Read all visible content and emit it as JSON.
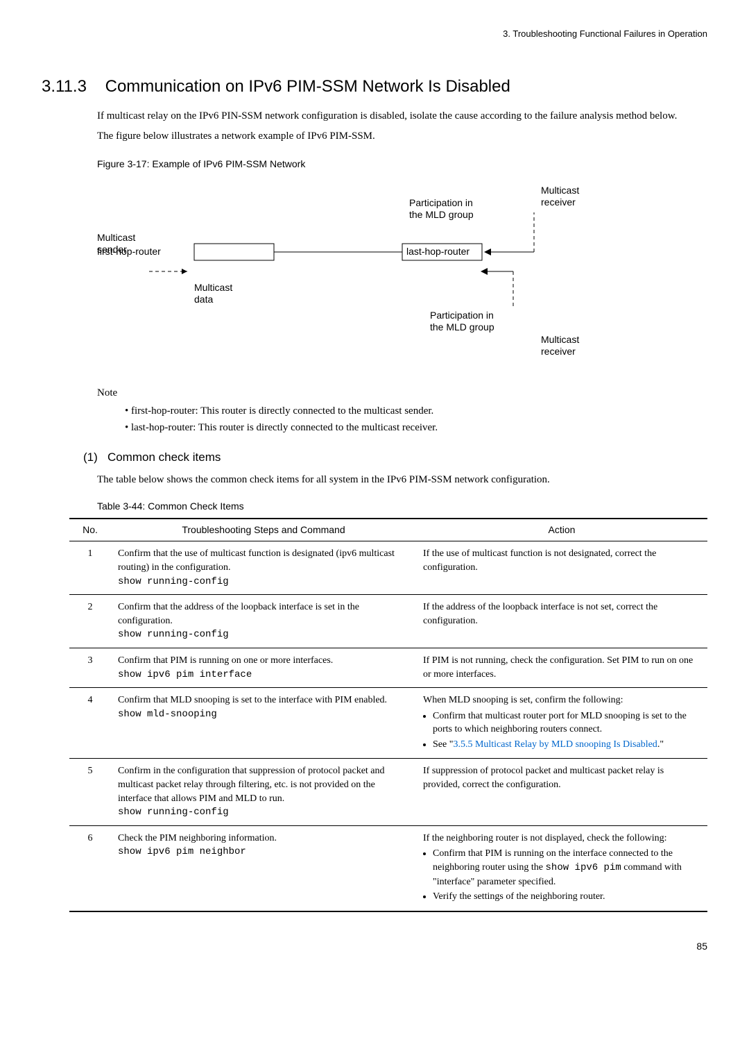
{
  "header": {
    "chapter": "3.",
    "chapter_title": "Troubleshooting Functional Failures in Operation"
  },
  "section": {
    "number": "3.11.3",
    "title": "Communication on IPv6 PIM-SSM Network Is Disabled"
  },
  "intro_para1": "If multicast relay on the IPv6 PIN-SSM network configuration is disabled, isolate the cause according to the failure analysis method below.",
  "intro_para2": "The figure below illustrates a network example of IPv6 PIM-SSM.",
  "figure": {
    "caption": "Figure 3-17: Example of IPv6 PIM-SSM Network",
    "labels": {
      "multicast_sender": "Multicast\nsender",
      "first_hop": "first-hop-router",
      "last_hop": "last-hop-router",
      "multicast_data": "Multicast\ndata",
      "participation1": "Participation in\nthe MLD group",
      "participation2": "Participation in\nthe MLD group",
      "multicast_receiver1": "Multicast\nreceiver",
      "multicast_receiver2": "Multicast\nreceiver"
    }
  },
  "note_label": "Note",
  "note_bullets": [
    "first-hop-router: This router is directly connected to the multicast sender.",
    "last-hop-router: This router is directly connected to the multicast receiver."
  ],
  "subsection": {
    "number": "(1)",
    "title": "Common check items"
  },
  "subsection_para": "The table below shows the common check items for all system in the IPv6 PIM-SSM network configuration.",
  "table": {
    "caption": "Table 3-44: Common Check Items",
    "headers": {
      "no": "No.",
      "steps": "Troubleshooting Steps and Command",
      "action": "Action"
    },
    "rows": [
      {
        "no": "1",
        "steps_text": "Confirm that the use of multicast function is designated (ipv6 multicast routing) in the configuration.",
        "steps_cmd": "show running-config",
        "action_text": "If the use of multicast function is not designated, correct the configuration."
      },
      {
        "no": "2",
        "steps_text": "Confirm that the address of the loopback interface is set in the configuration.",
        "steps_cmd": "show running-config",
        "action_text": "If the address of the loopback interface is not set, correct the configuration."
      },
      {
        "no": "3",
        "steps_text": "Confirm that PIM is running on one or more interfaces.",
        "steps_cmd": "show ipv6 pim interface",
        "action_text": "If PIM is not running, check the configuration. Set PIM to run on one or more interfaces."
      },
      {
        "no": "4",
        "steps_text": "Confirm that MLD snooping is set to the interface with PIM enabled.",
        "steps_cmd": "show mld-snooping",
        "action_text": "When MLD snooping is set, confirm the following:",
        "action_bullets": [
          "Confirm that multicast router port for MLD snooping is set to the ports to which neighboring routers connect.",
          "See \"3.5.5 Multicast Relay by MLD snooping Is Disabled.\""
        ],
        "link_bullet_index": 1,
        "link_text": "3.5.5 Multicast Relay by MLD snooping Is Disabled"
      },
      {
        "no": "5",
        "steps_text": "Confirm in the configuration that suppression of protocol packet and multicast packet relay through filtering, etc. is not provided on the interface that allows PIM and MLD to run.",
        "steps_cmd": "show running-config",
        "action_text": "If suppression of protocol packet and multicast packet relay is provided, correct the configuration."
      },
      {
        "no": "6",
        "steps_text": "Check the PIM neighboring information.",
        "steps_cmd": "show ipv6 pim neighbor",
        "action_text": "If the neighboring router is not displayed, check the following:",
        "action_bullets_mixed": [
          {
            "pre": "Confirm that PIM is running on the interface connected to the neighboring router using the ",
            "mono": "show ipv6 pim",
            "post": " command with \"interface\" parameter specified."
          },
          {
            "pre": "Verify the settings of the neighboring router.",
            "mono": "",
            "post": ""
          }
        ]
      }
    ]
  },
  "page_number": "85"
}
